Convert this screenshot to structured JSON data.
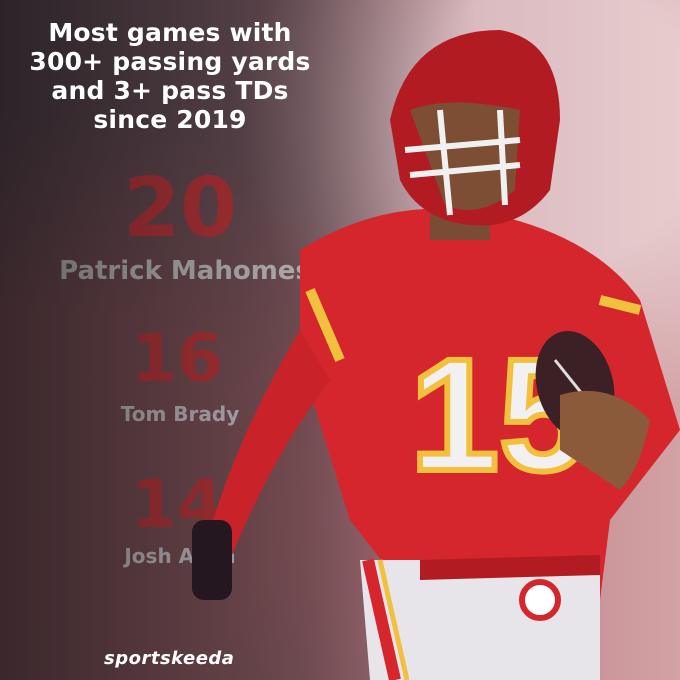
{
  "headline": {
    "lines": [
      "Most games with",
      "300+ passing yards",
      "and 3+ pass TDs",
      "since 2019"
    ]
  },
  "rankings": [
    {
      "value": "20",
      "name": "Patrick Mahomes"
    },
    {
      "value": "16",
      "name": "Tom Brady"
    },
    {
      "value": "14",
      "name": "Josh Allen"
    }
  ],
  "jersey_number": "15",
  "brand": "sportskeeda",
  "colors": {
    "stat_red": "#f23f43",
    "jersey_red": "#d4262c",
    "helmet_red": "#b31b22",
    "gold": "#f1c03d"
  }
}
